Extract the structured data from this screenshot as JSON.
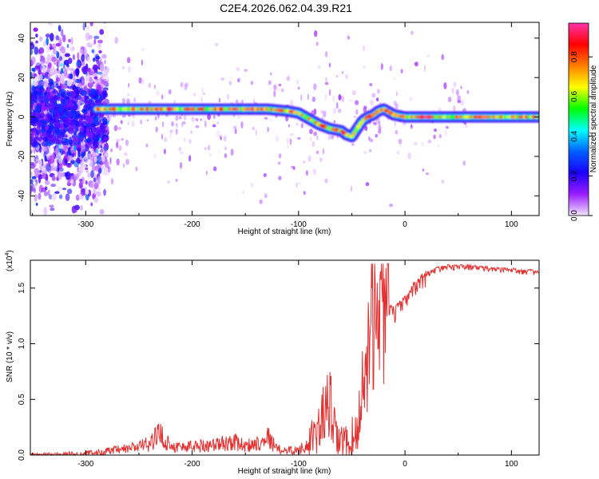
{
  "title": "C2E4.2026.062.04.39.R21",
  "chart_data": [
    {
      "type": "heatmap",
      "panel": "top",
      "xlabel": "Height of straight line (km)",
      "ylabel": "Frequency (Hz)",
      "xlim": [
        -352,
        126
      ],
      "ylim": [
        -50,
        48
      ],
      "xticks": [
        -300,
        -200,
        -100,
        0,
        100
      ],
      "xtick_labels": [
        "-300",
        "-200",
        "-100",
        "0",
        "100"
      ],
      "yticks": [
        -40,
        -20,
        0,
        20,
        40
      ],
      "ytick_labels": [
        "-40",
        "-20",
        "0",
        "20",
        "40"
      ],
      "colorbar": {
        "label": "Normalized spectral amplitude",
        "range": [
          0,
          0.97
        ],
        "ticks": [
          0.0,
          0.2,
          0.4,
          0.6,
          0.8
        ],
        "tick_labels": [
          "0.0",
          "0.2",
          "0.4",
          "0.6",
          "0.8"
        ],
        "colormap": [
          "#f2e6ff",
          "#9a1cff",
          "#1a00ff",
          "#0060ff",
          "#00ffff",
          "#00ff00",
          "#ffff00",
          "#ff8000",
          "#ff0000",
          "#ff33aa"
        ]
      },
      "ridge": {
        "x": [
          -290,
          -270,
          -250,
          -230,
          -210,
          -190,
          -170,
          -150,
          -130,
          -110,
          -100,
          -90,
          -80,
          -70,
          -60,
          -55,
          -50,
          -45,
          -40,
          -35,
          -30,
          -25,
          -20,
          -10,
          0,
          20,
          50,
          80,
          110,
          126
        ],
        "y": [
          4,
          4,
          4,
          4,
          4,
          4,
          4,
          4,
          4,
          3,
          2,
          -1,
          -4,
          -6,
          -7,
          -9,
          -10,
          -6,
          -2,
          0,
          1,
          3,
          4,
          1,
          0,
          0,
          0,
          0,
          0,
          0
        ]
      },
      "noisy_region_x": [
        -352,
        -280
      ]
    },
    {
      "type": "line",
      "panel": "bottom",
      "xlabel": "Height of straight line (km)",
      "ylabel": "SNR (10 * v/v)",
      "scale_note": "(x10",
      "scale_exp": "4",
      "scale_close": ")",
      "xlim": [
        -352,
        126
      ],
      "ylim": [
        0,
        1.75
      ],
      "xticks": [
        -300,
        -200,
        -100,
        0,
        100
      ],
      "xtick_labels": [
        "-300",
        "-200",
        "-100",
        "0",
        "100"
      ],
      "yticks": [
        0.0,
        0.5,
        1.0,
        1.5
      ],
      "ytick_labels": [
        "0.0",
        "0.5",
        "1.0",
        "1.5"
      ],
      "color": "#e53030",
      "series": [
        {
          "name": "SNR",
          "x": [
            -352,
            -300,
            -265,
            -240,
            -230,
            -225,
            -215,
            -200,
            -180,
            -160,
            -150,
            -135,
            -130,
            -120,
            -100,
            -85,
            -75,
            -70,
            -65,
            -55,
            -45,
            -40,
            -35,
            -30,
            -25,
            -20,
            -10,
            0,
            10,
            20,
            30,
            40,
            60,
            80,
            100,
            126
          ],
          "y": [
            0.0,
            0.01,
            0.05,
            0.1,
            0.2,
            0.12,
            0.07,
            0.08,
            0.09,
            0.12,
            0.08,
            0.12,
            0.18,
            0.05,
            0.04,
            0.15,
            0.4,
            0.45,
            0.15,
            0.1,
            0.2,
            0.6,
            0.95,
            1.2,
            1.3,
            1.35,
            1.3,
            1.4,
            1.55,
            1.63,
            1.68,
            1.7,
            1.7,
            1.68,
            1.67,
            1.65
          ]
        }
      ]
    }
  ]
}
